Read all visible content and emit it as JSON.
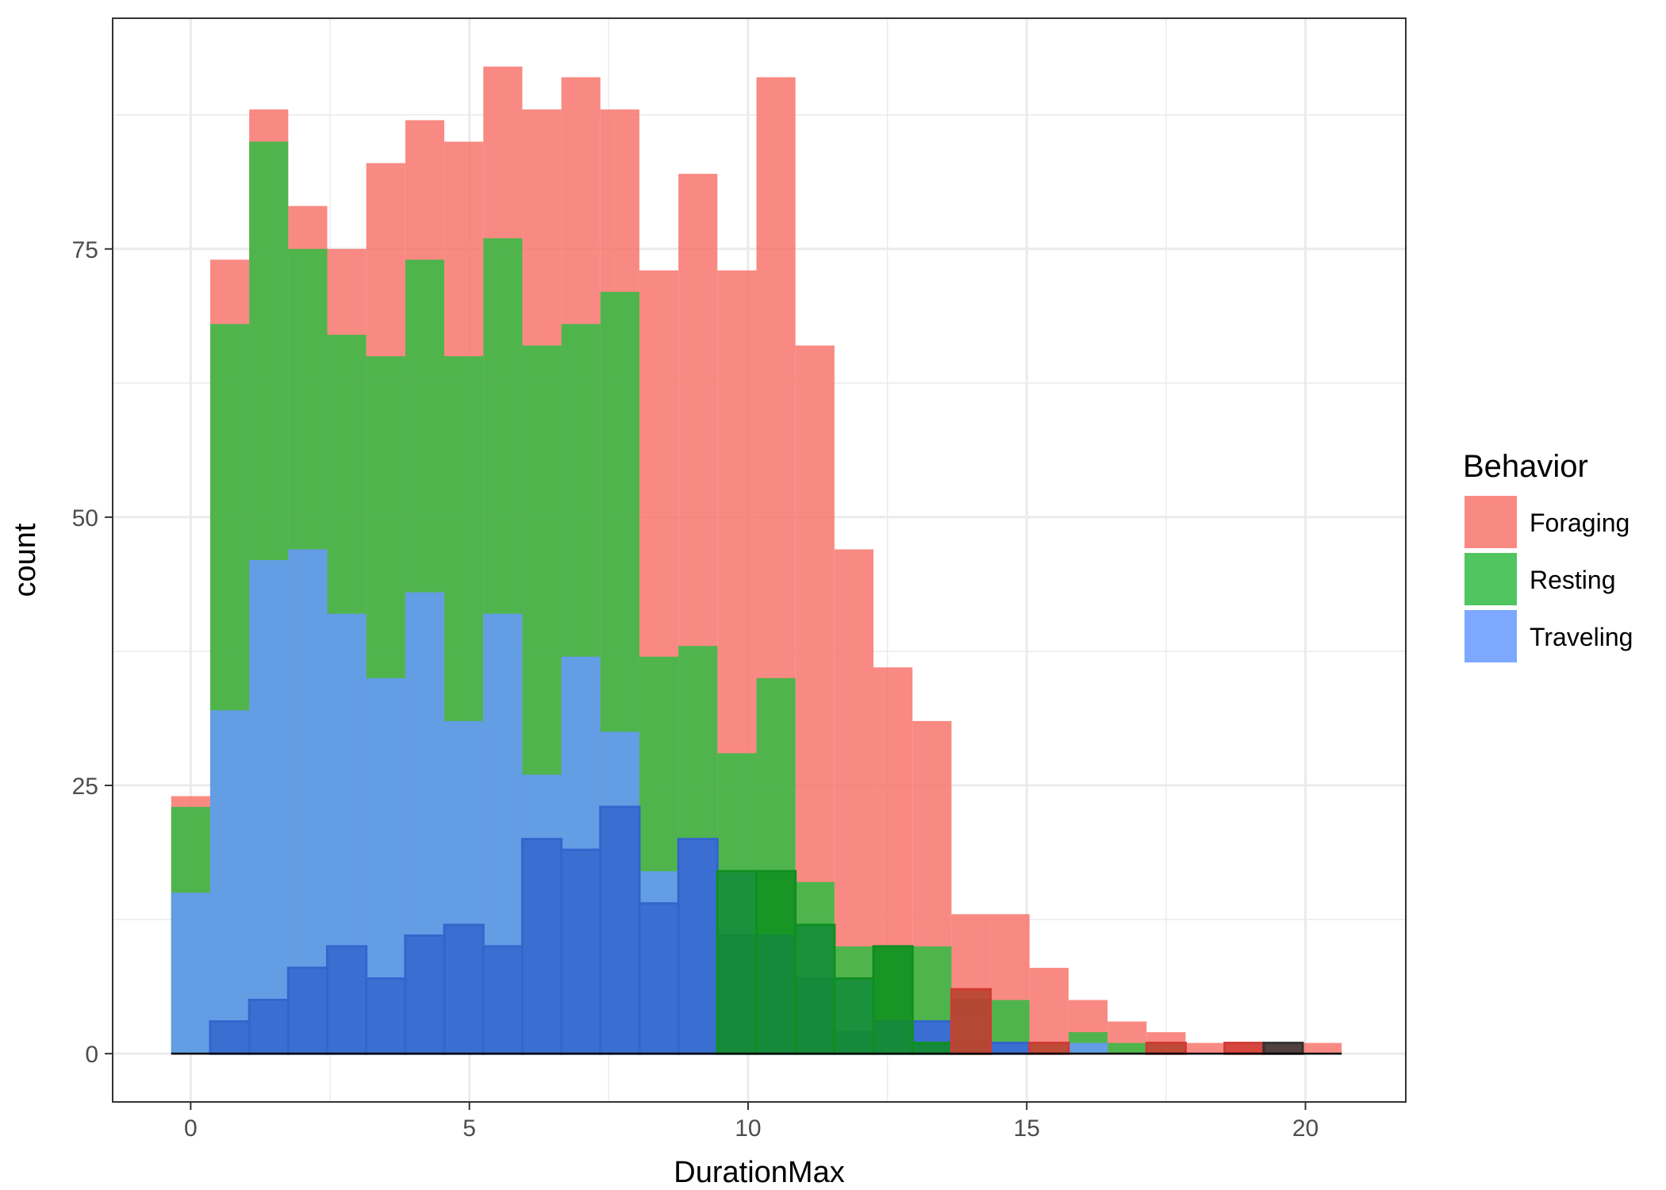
{
  "chart_data": {
    "type": "bar",
    "xlabel": "DurationMax",
    "ylabel": "count",
    "xlim": [
      -1.4,
      21.8
    ],
    "ylim": [
      -4.5,
      96.5
    ],
    "x_ticks": [
      0,
      5,
      10,
      15,
      20
    ],
    "y_ticks": [
      0,
      25,
      50,
      75
    ],
    "grid": true,
    "legend": {
      "title": "Behavior",
      "position": "right"
    },
    "bin_edges": [
      -0.35,
      0.35,
      1.05,
      1.75,
      2.45,
      3.15,
      3.85,
      4.55,
      5.25,
      5.95,
      6.65,
      7.35,
      8.05,
      8.75,
      9.45,
      10.15,
      10.85,
      11.55,
      12.25,
      12.95,
      13.65,
      14.35,
      15.05,
      15.75,
      16.45,
      17.15,
      17.85,
      18.55,
      19.25,
      19.95,
      20.65
    ],
    "series": [
      {
        "name": "Foraging",
        "color": "#F8766D",
        "values": [
          24,
          74,
          88,
          79,
          75,
          83,
          87,
          85,
          92,
          88,
          91,
          88,
          73,
          82,
          73,
          91,
          66,
          47,
          36,
          31,
          13,
          13,
          8,
          5,
          3,
          2,
          1,
          1,
          1,
          1
        ]
      },
      {
        "name": "Resting",
        "color": "#33BB44",
        "values": [
          23,
          68,
          85,
          75,
          67,
          65,
          74,
          65,
          76,
          66,
          68,
          71,
          37,
          38,
          28,
          35,
          16,
          10,
          10,
          10,
          6,
          5,
          1,
          2,
          1,
          1,
          0,
          0,
          0,
          0
        ]
      },
      {
        "name": "Traveling",
        "color": "#6699FF",
        "values": [
          15,
          32,
          46,
          47,
          41,
          35,
          43,
          31,
          41,
          26,
          37,
          30,
          17,
          20,
          17,
          11,
          12,
          7,
          3,
          3,
          4,
          1,
          0,
          1,
          0,
          0,
          0,
          0,
          0,
          0
        ]
      },
      {
        "name": "",
        "color": "#3366CC",
        "values": [
          0,
          3,
          5,
          8,
          10,
          7,
          11,
          12,
          10,
          20,
          19,
          23,
          14,
          20,
          11,
          11,
          7,
          2,
          3,
          3,
          1,
          1,
          0,
          0,
          0,
          0,
          0,
          0,
          0,
          0
        ]
      },
      {
        "name": "",
        "color": "#0F8F20",
        "values": [
          0,
          0,
          0,
          0,
          0,
          0,
          0,
          0,
          0,
          0,
          0,
          0,
          0,
          0,
          17,
          17,
          12,
          7,
          10,
          1,
          5,
          0,
          0,
          0,
          0,
          0,
          0,
          0,
          0,
          0
        ]
      },
      {
        "name": "",
        "color": "#D03A34",
        "values": [
          0,
          0,
          0,
          0,
          0,
          0,
          0,
          0,
          0,
          0,
          0,
          0,
          0,
          0,
          0,
          0,
          0,
          0,
          0,
          0,
          6,
          0,
          1,
          0,
          0,
          1,
          0,
          1,
          0,
          0
        ]
      },
      {
        "name": "",
        "color": "#333333",
        "values": [
          0,
          0,
          0,
          0,
          0,
          0,
          0,
          0,
          0,
          0,
          0,
          0,
          0,
          0,
          0,
          0,
          0,
          0,
          0,
          0,
          0,
          0,
          0,
          0,
          0,
          0,
          0,
          0,
          1,
          0
        ]
      }
    ]
  }
}
